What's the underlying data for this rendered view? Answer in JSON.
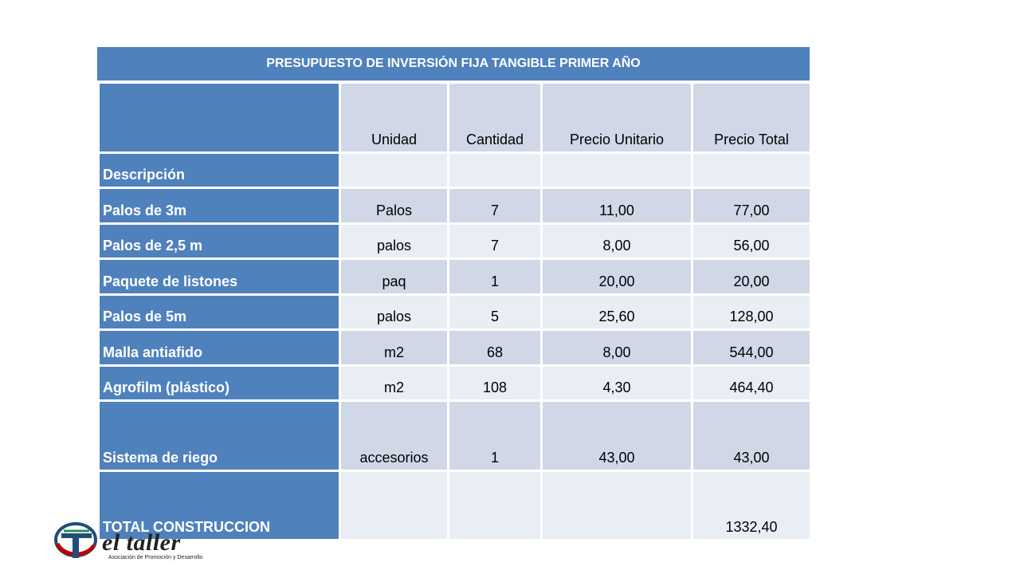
{
  "table": {
    "title": "PRESUPUESTO DE INVERSIÓN FIJA TANGIBLE PRIMER AÑO",
    "headers": {
      "unit": "Unidad",
      "quantity": "Cantidad",
      "unit_price": "Precio Unitario",
      "total_price": "Precio Total"
    },
    "description_label": "Descripción",
    "rows": [
      {
        "description": "Palos de 3m",
        "unit": "Palos",
        "quantity": "7",
        "unit_price": "11,00",
        "total_price": "77,00"
      },
      {
        "description": "Palos de 2,5 m",
        "unit": "palos",
        "quantity": "7",
        "unit_price": "8,00",
        "total_price": "56,00"
      },
      {
        "description": "Paquete de listones",
        "unit": "paq",
        "quantity": "1",
        "unit_price": "20,00",
        "total_price": "20,00"
      },
      {
        "description": "Palos de 5m",
        "unit": "palos",
        "quantity": "5",
        "unit_price": "25,60",
        "total_price": "128,00"
      },
      {
        "description": "Malla antiafido",
        "unit": "m2",
        "quantity": "68",
        "unit_price": "8,00",
        "total_price": "544,00"
      },
      {
        "description": "Agrofilm (plástico)",
        "unit": "m2",
        "quantity": "108",
        "unit_price": "4,30",
        "total_price": "464,40"
      },
      {
        "description": "Sistema de riego",
        "unit": "accesorios",
        "quantity": "1",
        "unit_price": "43,00",
        "total_price": "43,00"
      }
    ],
    "total": {
      "label": "TOTAL CONSTRUCCION",
      "value": "1332,40"
    }
  },
  "logo": {
    "name": "el taller",
    "tagline": "Asociación de Promoción y Desarrollo"
  },
  "colors": {
    "header_blue": "#4f81bd",
    "row_dark": "#d0d8e8",
    "row_light": "#e9edf4"
  }
}
